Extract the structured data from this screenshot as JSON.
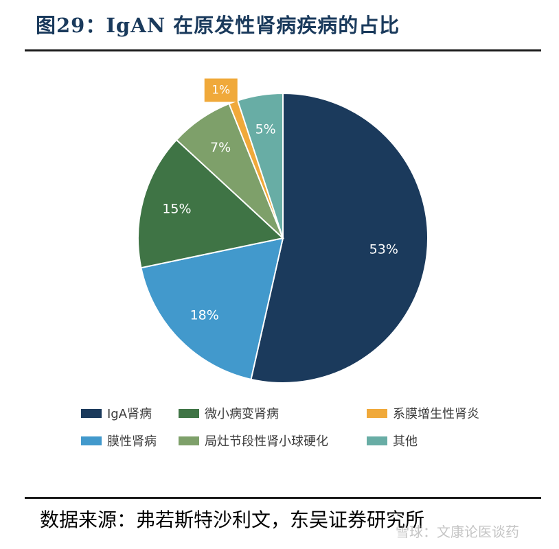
{
  "header": {
    "title": "图29：IgAN 在原发性肾病疾病的占比"
  },
  "chart_data": {
    "type": "pie",
    "slices": [
      {
        "label": "IgA肾病",
        "value": 53,
        "display": "53%",
        "color": "#1b3a5c",
        "text_color": "#ffffff"
      },
      {
        "label": "膜性肾病",
        "value": 18,
        "display": "18%",
        "color": "#4299cc",
        "text_color": "#ffffff"
      },
      {
        "label": "微小病变肾病",
        "value": 15,
        "display": "15%",
        "color": "#3f7445",
        "text_color": "#ffffff"
      },
      {
        "label": "局灶节段性肾小球硬化",
        "value": 7,
        "display": "7%",
        "color": "#7ea06a",
        "text_color": "#ffffff"
      },
      {
        "label": "系膜增生性肾炎",
        "value": 1,
        "display": "1%",
        "color": "#f0a93a",
        "text_color": "#ffffff"
      },
      {
        "label": "其他",
        "value": 5,
        "display": "5%",
        "color": "#68ada5",
        "text_color": "#ffffff"
      }
    ],
    "legend_position": "bottom"
  },
  "legend": {
    "items": [
      {
        "label": "IgA肾病",
        "color": "#1b3a5c"
      },
      {
        "label": "微小病变肾病",
        "color": "#3f7445"
      },
      {
        "label": "系膜增生性肾炎",
        "color": "#f0a93a"
      },
      {
        "label": "膜性肾病",
        "color": "#4299cc"
      },
      {
        "label": "局灶节段性肾小球硬化",
        "color": "#7ea06a"
      },
      {
        "label": "其他",
        "color": "#68ada5"
      }
    ]
  },
  "footer": {
    "source": "数据来源：弗若斯特沙利文，东吴证券研究所",
    "watermark": "雪球：文康论医谈药"
  }
}
